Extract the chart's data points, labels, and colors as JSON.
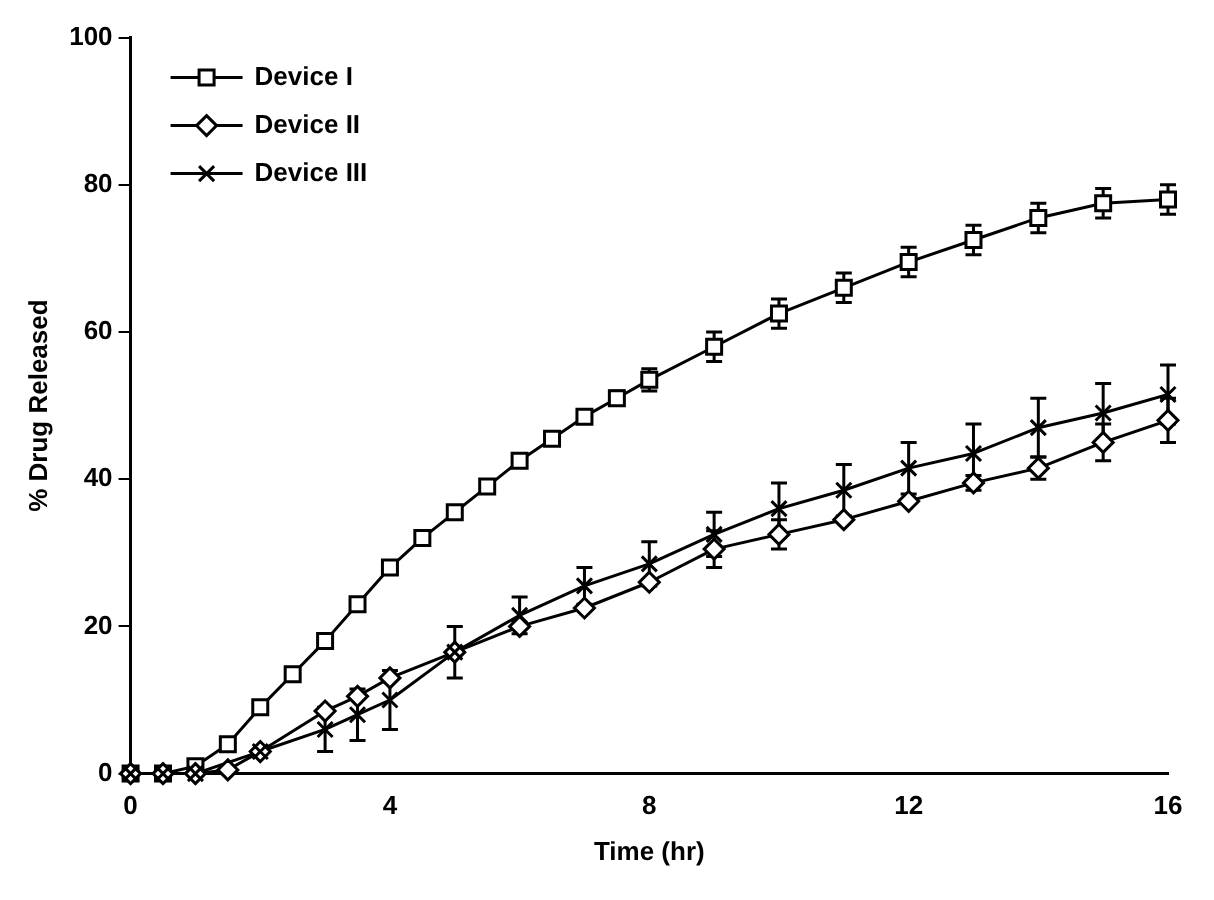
{
  "chart_data": {
    "type": "line",
    "xlabel": "Time (hr)",
    "ylabel": "% Drug Released",
    "xlim": [
      0,
      16
    ],
    "xticks": [
      0,
      4,
      8,
      12,
      16
    ],
    "ylim": [
      0,
      100
    ],
    "yticks": [
      0,
      20,
      40,
      60,
      80,
      100
    ],
    "grid": false,
    "legend": "top left",
    "line_style": "solid",
    "series": [
      {
        "name": "Device I",
        "color": "#000000",
        "marker": "square",
        "x": [
          0,
          0.5,
          1,
          1.5,
          2,
          2.5,
          3,
          3.5,
          4,
          4.5,
          5,
          5.5,
          6,
          6.5,
          7,
          7.5,
          8,
          9,
          10,
          11,
          12,
          13,
          14,
          15,
          16
        ],
        "values": [
          0,
          0,
          1,
          4,
          9,
          13.5,
          18,
          23,
          28,
          32,
          35.5,
          39,
          42.5,
          45.5,
          48.5,
          51,
          53.5,
          58,
          62.5,
          66,
          69.5,
          72.5,
          75.5,
          77.5,
          78
        ],
        "errors": [
          null,
          null,
          null,
          null,
          null,
          null,
          null,
          null,
          null,
          null,
          null,
          null,
          null,
          null,
          null,
          1,
          1.5,
          2,
          2,
          2,
          2,
          2,
          2,
          2,
          2
        ]
      },
      {
        "name": "Device II",
        "color": "#000000",
        "marker": "diamond",
        "x": [
          0,
          0.5,
          1,
          1.5,
          2,
          3,
          3.5,
          4,
          5,
          6,
          7,
          8,
          9,
          10,
          11,
          12,
          13,
          14,
          15,
          16
        ],
        "values": [
          0,
          0,
          0,
          0.5,
          3,
          8.5,
          10.5,
          13,
          16.5,
          20,
          22.5,
          26,
          30.5,
          32.5,
          34.5,
          37,
          39.5,
          41.5,
          45,
          48
        ],
        "errors": [
          null,
          null,
          null,
          null,
          null,
          null,
          null,
          null,
          null,
          null,
          null,
          null,
          2.5,
          2,
          null,
          null,
          1,
          1.5,
          2.5,
          3
        ]
      },
      {
        "name": "Device III",
        "color": "#000000",
        "marker": "cross",
        "x": [
          0,
          0.5,
          1,
          2,
          3,
          3.5,
          4,
          5,
          6,
          7,
          8,
          9,
          10,
          11,
          12,
          13,
          14,
          15,
          16
        ],
        "values": [
          0,
          0,
          0,
          3,
          6,
          8,
          10,
          16.5,
          21.5,
          25.5,
          28.5,
          32.5,
          36,
          38.5,
          41.5,
          43.5,
          47,
          49,
          51.5
        ],
        "errors": [
          null,
          null,
          null,
          null,
          3,
          3.5,
          4,
          3.5,
          2.5,
          2.5,
          3,
          3,
          3.5,
          3.5,
          3.5,
          4,
          4,
          4,
          4
        ]
      }
    ]
  }
}
